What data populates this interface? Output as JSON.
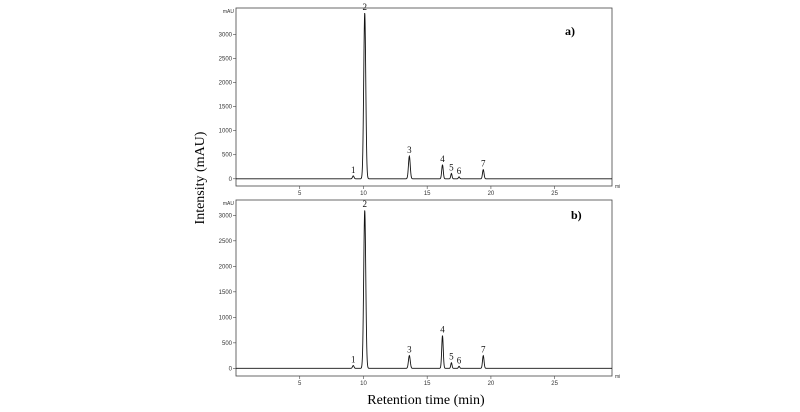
{
  "page": {
    "ylabel": "Intensity (mAU)",
    "xlabel": "Retention time (min)"
  },
  "chart_data": [
    {
      "type": "line",
      "panel_label": "a)",
      "y_unit": "mAU",
      "x_unit": "mi",
      "xlim": [
        0,
        29.5
      ],
      "ylim": [
        -150,
        3550
      ],
      "x_ticks": [
        {
          "value": 5,
          "label": "5"
        },
        {
          "value": 10,
          "label": "10"
        },
        {
          "value": 15,
          "label": "15"
        },
        {
          "value": 20,
          "label": "20"
        },
        {
          "value": 25,
          "label": "25"
        }
      ],
      "y_ticks": [
        {
          "value": 0,
          "label": "0"
        },
        {
          "value": 500,
          "label": "500"
        },
        {
          "value": 1000,
          "label": "1000"
        },
        {
          "value": 1500,
          "label": "1500"
        },
        {
          "value": 2000,
          "label": "2000"
        },
        {
          "value": 2500,
          "label": "2500"
        },
        {
          "value": 3000,
          "label": "3000"
        }
      ],
      "peaks": [
        {
          "label": "1",
          "rt": 9.2,
          "height": 60,
          "width": 0.06
        },
        {
          "label": "2",
          "rt": 10.1,
          "height": 3450,
          "width": 0.08
        },
        {
          "label": "3",
          "rt": 13.6,
          "height": 470,
          "width": 0.07
        },
        {
          "label": "4",
          "rt": 16.2,
          "height": 290,
          "width": 0.06
        },
        {
          "label": "5",
          "rt": 16.9,
          "height": 110,
          "width": 0.05
        },
        {
          "label": "6",
          "rt": 17.5,
          "height": 40,
          "width": 0.05
        },
        {
          "label": "7",
          "rt": 19.4,
          "height": 190,
          "width": 0.06
        }
      ]
    },
    {
      "type": "line",
      "panel_label": "b)",
      "y_unit": "mAU",
      "x_unit": "mi",
      "xlim": [
        0,
        29.5
      ],
      "ylim": [
        -150,
        3300
      ],
      "x_ticks": [
        {
          "value": 5,
          "label": "5"
        },
        {
          "value": 10,
          "label": "10"
        },
        {
          "value": 15,
          "label": "15"
        },
        {
          "value": 20,
          "label": "20"
        },
        {
          "value": 25,
          "label": "25"
        }
      ],
      "y_ticks": [
        {
          "value": 0,
          "label": "0"
        },
        {
          "value": 500,
          "label": "500"
        },
        {
          "value": 1000,
          "label": "1000"
        },
        {
          "value": 1500,
          "label": "1500"
        },
        {
          "value": 2000,
          "label": "2000"
        },
        {
          "value": 2500,
          "label": "2500"
        },
        {
          "value": 3000,
          "label": "3000"
        }
      ],
      "peaks": [
        {
          "label": "1",
          "rt": 9.2,
          "height": 55,
          "width": 0.06
        },
        {
          "label": "2",
          "rt": 10.1,
          "height": 3100,
          "width": 0.08
        },
        {
          "label": "3",
          "rt": 13.6,
          "height": 250,
          "width": 0.07
        },
        {
          "label": "4",
          "rt": 16.2,
          "height": 640,
          "width": 0.06
        },
        {
          "label": "5",
          "rt": 16.9,
          "height": 110,
          "width": 0.05
        },
        {
          "label": "6",
          "rt": 17.5,
          "height": 40,
          "width": 0.05
        },
        {
          "label": "7",
          "rt": 19.4,
          "height": 250,
          "width": 0.06
        }
      ]
    }
  ]
}
